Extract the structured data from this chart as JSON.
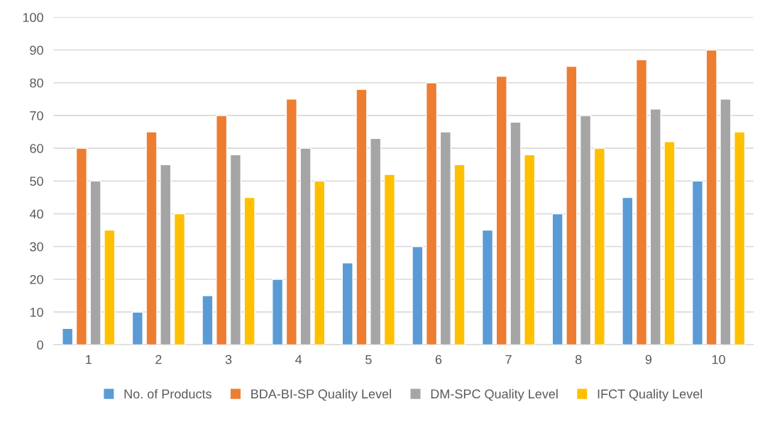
{
  "chart_data": {
    "type": "bar",
    "categories": [
      "1",
      "2",
      "3",
      "4",
      "5",
      "6",
      "7",
      "8",
      "9",
      "10"
    ],
    "series": [
      {
        "name": "No. of Products",
        "color": "#5b9bd5",
        "values": [
          5,
          10,
          15,
          20,
          25,
          30,
          35,
          40,
          45,
          50
        ]
      },
      {
        "name": "BDA-BI-SP Quality Level",
        "color": "#ed7d31",
        "values": [
          60,
          65,
          70,
          75,
          78,
          80,
          82,
          85,
          87,
          90
        ]
      },
      {
        "name": "DM-SPC Quality Level",
        "color": "#a5a5a5",
        "values": [
          50,
          55,
          58,
          60,
          63,
          65,
          68,
          70,
          72,
          75
        ]
      },
      {
        "name": "IFCT Quality Level",
        "color": "#ffc000",
        "values": [
          35,
          40,
          45,
          50,
          52,
          55,
          58,
          60,
          62,
          65
        ]
      }
    ],
    "ylim": [
      0,
      100
    ],
    "yticks": [
      0,
      10,
      20,
      30,
      40,
      50,
      60,
      70,
      80,
      90,
      100
    ],
    "grid": "y",
    "legend": "bottom"
  }
}
